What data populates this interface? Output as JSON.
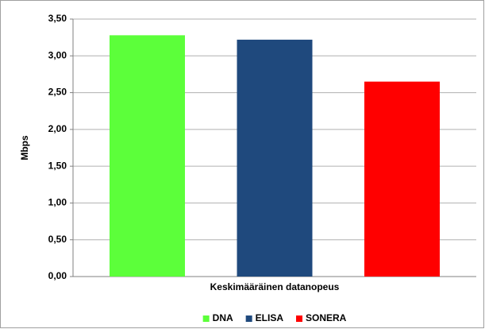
{
  "chart_data": {
    "type": "bar",
    "categories": [
      "Keskimääräinen datanopeus"
    ],
    "y_axis_label": "Mbps",
    "series": [
      {
        "name": "DNA",
        "color": "#5cff3a",
        "values": [
          3.28
        ]
      },
      {
        "name": "ELISA",
        "color": "#1f497d",
        "values": [
          3.22
        ]
      },
      {
        "name": "SONERA",
        "color": "#ff0000",
        "values": [
          2.65
        ]
      }
    ],
    "ylim": [
      0,
      3.5
    ],
    "yticks": [
      {
        "value": 0,
        "label": "0,00"
      },
      {
        "value": 0.5,
        "label": "0,50"
      },
      {
        "value": 1,
        "label": "1,00"
      },
      {
        "value": 1.5,
        "label": "1,50"
      },
      {
        "value": 2,
        "label": "2,00"
      },
      {
        "value": 2.5,
        "label": "2,50"
      },
      {
        "value": 3,
        "label": "3,00"
      },
      {
        "value": 3.5,
        "label": "3,50"
      }
    ],
    "grid": true,
    "legend": "bottom"
  }
}
